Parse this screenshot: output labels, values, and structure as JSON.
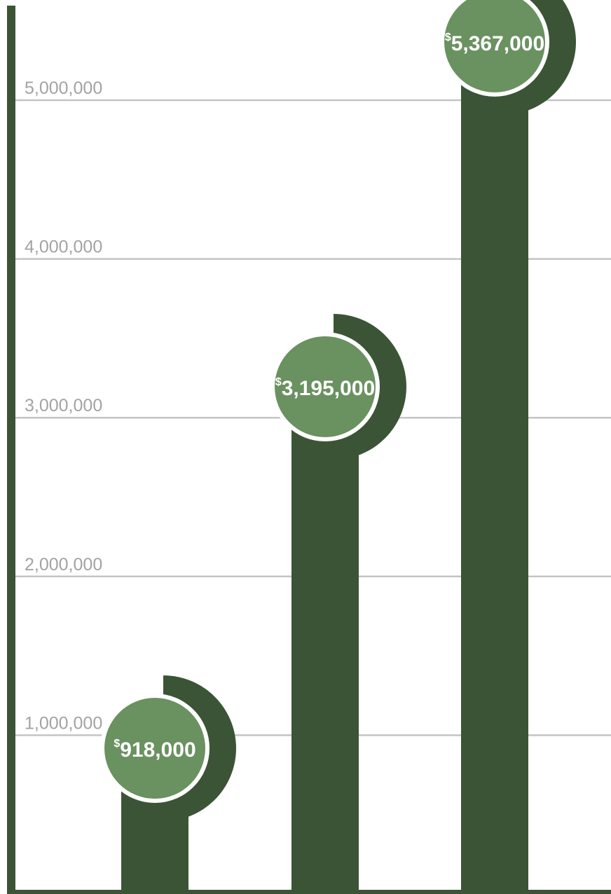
{
  "chart_data": {
    "type": "bar",
    "title": "",
    "xlabel": "",
    "ylabel": "",
    "ylim": [
      0,
      5550000
    ],
    "yticks": [
      1000000,
      2000000,
      3000000,
      4000000,
      5000000
    ],
    "ytick_labels": [
      "1,000,000",
      "2,000,000",
      "3,000,000",
      "4,000,000",
      "5,000,000"
    ],
    "grid": true,
    "values": [
      918000,
      3195000,
      5367000
    ],
    "data_labels": [
      {
        "currency": "$",
        "amount": "918,000"
      },
      {
        "currency": "$",
        "amount": "3,195,000"
      },
      {
        "currency": "$",
        "amount": "5,367,000"
      }
    ]
  },
  "colors": {
    "bar": "#3c5436",
    "badge": "#6a9160",
    "axis": "#3c5436",
    "grid": "#c4c4c4",
    "tick_text": "#a3a3a3",
    "label_text": "#ffffff"
  }
}
